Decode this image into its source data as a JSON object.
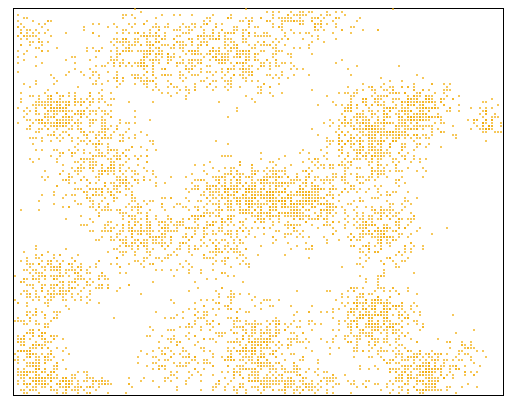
{
  "chart_data": {
    "type": "scatter",
    "title": "",
    "xlabel": "",
    "ylabel": "",
    "axes_visible": false,
    "grid": false,
    "legend": "none",
    "xlim": [
      0,
      100
    ],
    "ylim": [
      0,
      100
    ],
    "marker_color": "#f2a900",
    "series": [
      {
        "name": "",
        "points_note_excluded": false,
        "density_regions": [
          {
            "cx": 2,
            "cy": 92,
            "rx": 6,
            "ry": 6,
            "n": 90
          },
          {
            "cx": 28,
            "cy": 88,
            "rx": 14,
            "ry": 10,
            "n": 420
          },
          {
            "cx": 45,
            "cy": 88,
            "rx": 12,
            "ry": 10,
            "n": 380
          },
          {
            "cx": 60,
            "cy": 97,
            "rx": 12,
            "ry": 4,
            "n": 120
          },
          {
            "cx": 10,
            "cy": 72,
            "rx": 9,
            "ry": 7,
            "n": 320
          },
          {
            "cx": 18,
            "cy": 58,
            "rx": 9,
            "ry": 12,
            "n": 380
          },
          {
            "cx": 27,
            "cy": 42,
            "rx": 10,
            "ry": 9,
            "n": 300
          },
          {
            "cx": 8,
            "cy": 30,
            "rx": 10,
            "ry": 7,
            "n": 260
          },
          {
            "cx": 4,
            "cy": 12,
            "rx": 5,
            "ry": 12,
            "n": 300
          },
          {
            "cx": 10,
            "cy": 3,
            "rx": 10,
            "ry": 3,
            "n": 160
          },
          {
            "cx": 46,
            "cy": 52,
            "rx": 10,
            "ry": 7,
            "n": 380
          },
          {
            "cx": 58,
            "cy": 50,
            "rx": 10,
            "ry": 9,
            "n": 520
          },
          {
            "cx": 73,
            "cy": 67,
            "rx": 9,
            "ry": 12,
            "n": 560
          },
          {
            "cx": 83,
            "cy": 74,
            "rx": 7,
            "ry": 7,
            "n": 260
          },
          {
            "cx": 97,
            "cy": 71,
            "rx": 3,
            "ry": 4,
            "n": 70
          },
          {
            "cx": 75,
            "cy": 42,
            "rx": 7,
            "ry": 8,
            "n": 260
          },
          {
            "cx": 74,
            "cy": 20,
            "rx": 8,
            "ry": 8,
            "n": 380
          },
          {
            "cx": 83,
            "cy": 6,
            "rx": 8,
            "ry": 6,
            "n": 300
          },
          {
            "cx": 42,
            "cy": 40,
            "rx": 8,
            "ry": 10,
            "n": 180
          },
          {
            "cx": 50,
            "cy": 12,
            "rx": 10,
            "ry": 10,
            "n": 420
          },
          {
            "cx": 55,
            "cy": 3,
            "rx": 14,
            "ry": 3,
            "n": 160
          },
          {
            "cx": 33,
            "cy": 10,
            "rx": 6,
            "ry": 9,
            "n": 110
          },
          {
            "cx": 40,
            "cy": 22,
            "rx": 6,
            "ry": 6,
            "n": 70
          },
          {
            "cx": 93,
            "cy": 12,
            "rx": 3,
            "ry": 5,
            "n": 30
          }
        ]
      }
    ]
  }
}
